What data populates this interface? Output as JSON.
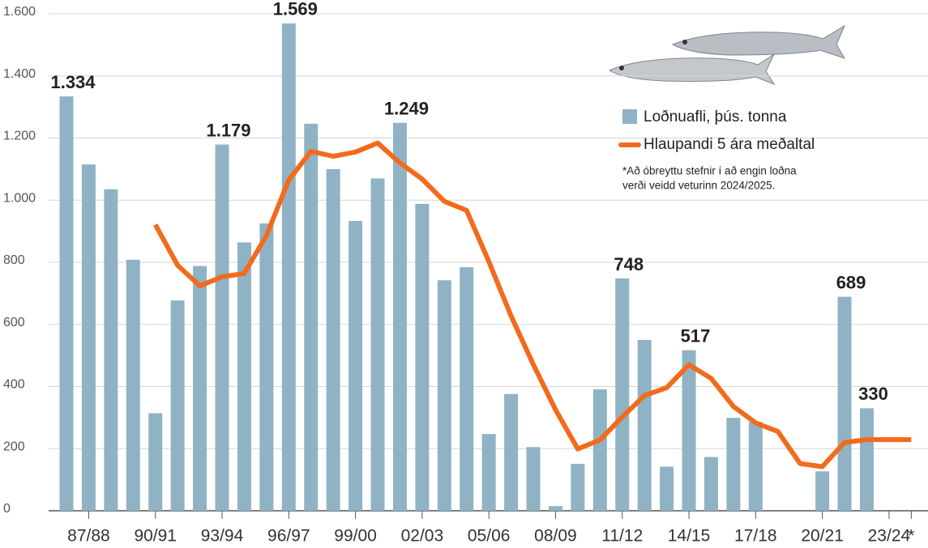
{
  "chart_data": {
    "type": "bar",
    "categories": [
      null,
      "87/88",
      null,
      null,
      "90/91",
      null,
      null,
      "93/94",
      null,
      null,
      "96/97",
      null,
      null,
      "99/00",
      null,
      null,
      "02/03",
      null,
      null,
      "05/06",
      null,
      null,
      "08/09",
      null,
      null,
      "11/12",
      null,
      null,
      "14/15",
      null,
      null,
      "17/18",
      null,
      null,
      "20/21",
      null,
      null,
      "23/24",
      "*"
    ],
    "series": [
      {
        "name": "Loðnuafli, þús. tonna",
        "color": "#8fb3c4",
        "type": "bar",
        "values": [
          1334,
          1115,
          1035,
          808,
          314,
          677,
          788,
          1179,
          864,
          925,
          1569,
          1246,
          1100,
          933,
          1070,
          1249,
          988,
          742,
          784,
          247,
          376,
          205,
          15,
          151,
          391,
          748,
          550,
          142,
          517,
          173,
          299,
          286,
          0,
          0,
          127,
          689,
          330,
          0,
          0
        ],
        "value_labels": [
          "1.334",
          null,
          null,
          null,
          null,
          null,
          null,
          "1.179",
          null,
          null,
          "1.569",
          null,
          null,
          null,
          null,
          "1.249",
          null,
          null,
          null,
          null,
          null,
          null,
          null,
          null,
          null,
          "748",
          null,
          null,
          "517",
          null,
          null,
          null,
          null,
          null,
          null,
          "689",
          "330",
          null,
          null
        ]
      },
      {
        "name": "Hlaupandi 5 ára meðaltal",
        "color": "#f26b1d",
        "type": "line",
        "values": [
          null,
          null,
          null,
          null,
          921,
          790,
          724,
          753,
          764,
          887,
          1065,
          1157,
          1141,
          1155,
          1184,
          1120,
          1068,
          996,
          967,
          802,
          627,
          471,
          325,
          199,
          228,
          302,
          371,
          396,
          470,
          426,
          336,
          283,
          255,
          152,
          142,
          220,
          229,
          229,
          229
        ]
      }
    ],
    "ylim": [
      0,
      1600
    ],
    "yticks": [
      0,
      200,
      400,
      600,
      800,
      {
        "value": 1000,
        "label": "1.000"
      },
      {
        "value": 1200,
        "label": "1.200"
      },
      {
        "value": 1400,
        "label": "1.400"
      },
      {
        "value": 1600,
        "label": "1.600"
      }
    ],
    "grid": true,
    "note": [
      "*Að óbreyttu stefnir í að engin loðna",
      "verði veidd veturinn 2024/2025."
    ]
  }
}
